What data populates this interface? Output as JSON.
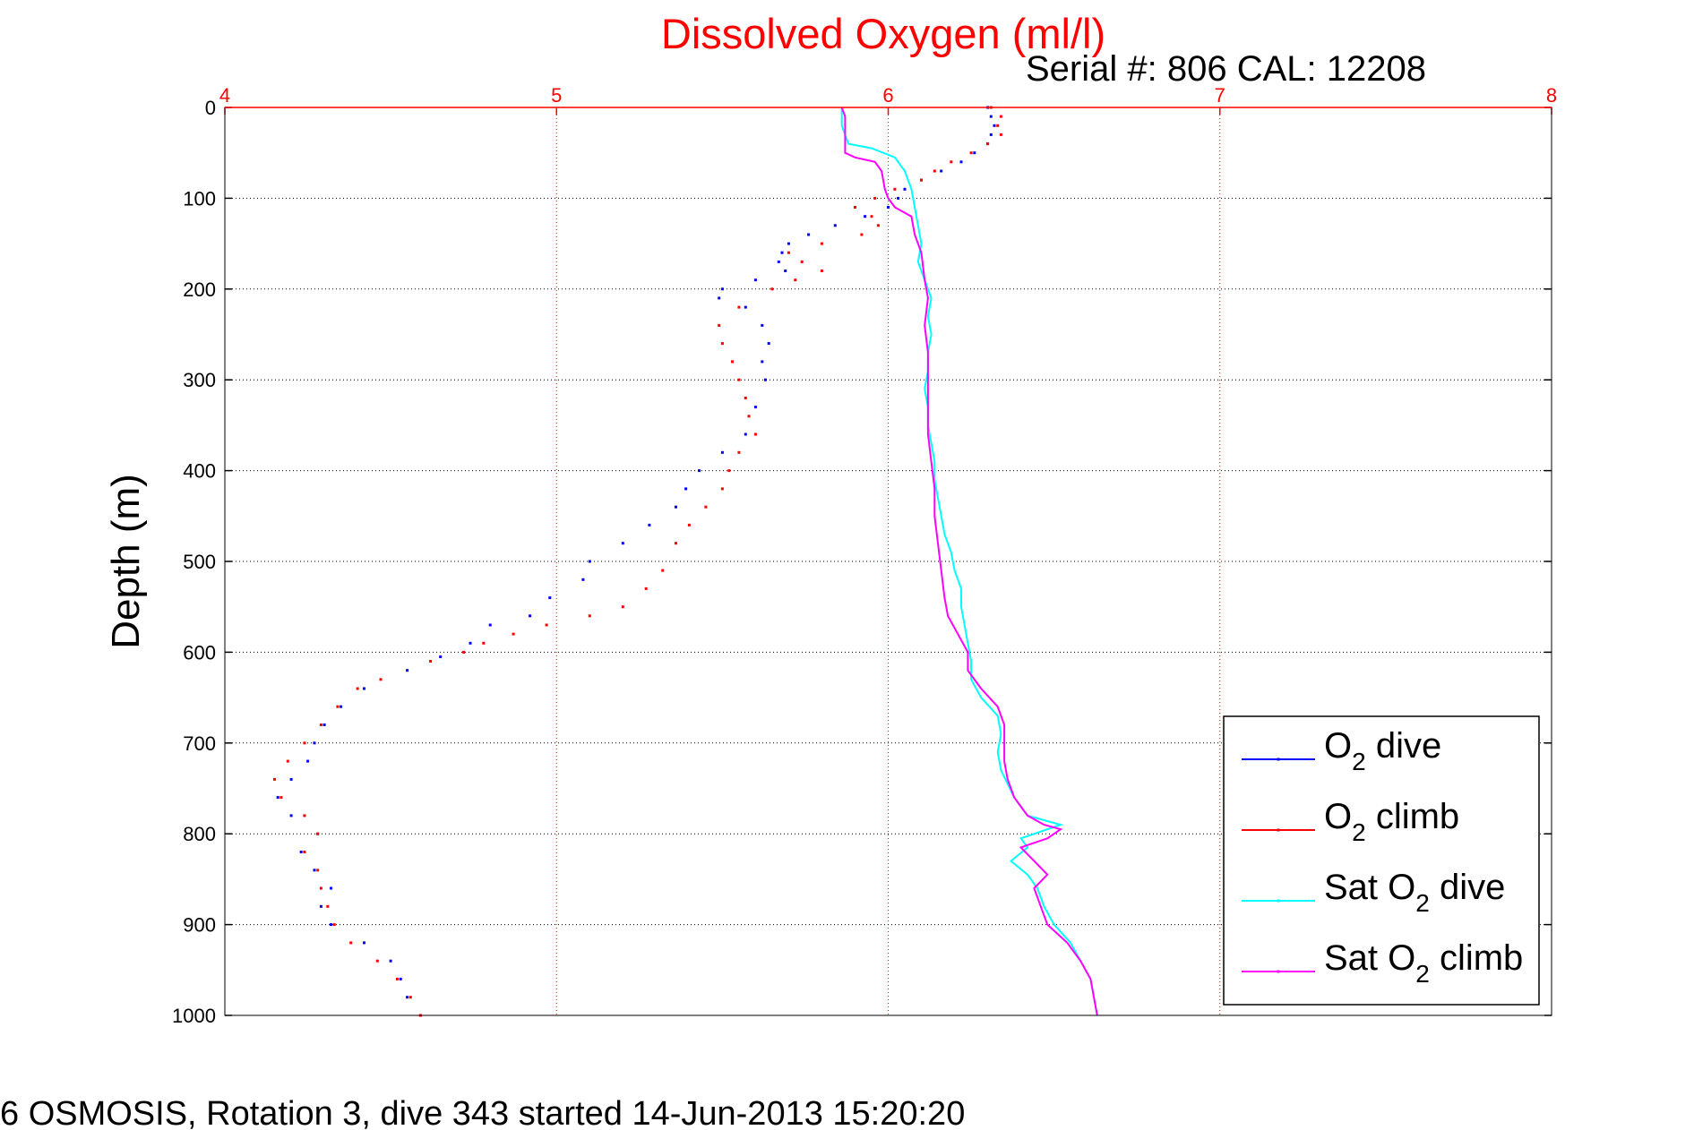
{
  "chart_data": {
    "type": "scatter",
    "title": "Dissolved Oxygen (ml/l)",
    "serial_label": "Serial #: 806  CAL: 12208",
    "ylabel": "Depth (m)",
    "xlabel": "",
    "footer": "6 OSMOSIS, Rotation 3, dive 343 started 14-Jun-2013 15:20:20",
    "xlim": [
      4,
      8
    ],
    "ylim": [
      0,
      1000
    ],
    "y_reversed": true,
    "x_axis_position": "top",
    "grid": true,
    "legend_position": "bottom-right",
    "x_ticks": [
      "4",
      "5",
      "6",
      "7",
      "8"
    ],
    "y_ticks": [
      "0",
      "100",
      "200",
      "300",
      "400",
      "500",
      "600",
      "700",
      "800",
      "900",
      "1000"
    ],
    "colors": {
      "title": "#ff0000",
      "x_axis": "#ff0000",
      "o2_dive": "#0000ff",
      "o2_climb": "#ff0000",
      "sat_dive": "#00ffff",
      "sat_climb": "#ff00ff"
    },
    "legend": [
      {
        "base": "O",
        "sub": "2",
        "rest": " dive",
        "color": "#0000ff"
      },
      {
        "base": "O",
        "sub": "2",
        "rest": " climb",
        "color": "#ff0000"
      },
      {
        "base": "Sat O",
        "sub": "2",
        "rest": " dive",
        "color": "#00ffff"
      },
      {
        "base": "Sat O",
        "sub": "2",
        "rest": " climb",
        "color": "#ff00ff"
      }
    ],
    "series": [
      {
        "name": "O2 dive",
        "style": "points",
        "color": "#0000ff",
        "points": [
          [
            6.3,
            0
          ],
          [
            6.31,
            10
          ],
          [
            6.32,
            20
          ],
          [
            6.31,
            30
          ],
          [
            6.3,
            40
          ],
          [
            6.26,
            50
          ],
          [
            6.22,
            60
          ],
          [
            6.16,
            70
          ],
          [
            6.1,
            80
          ],
          [
            6.05,
            90
          ],
          [
            6.03,
            100
          ],
          [
            6.0,
            110
          ],
          [
            5.93,
            120
          ],
          [
            5.84,
            130
          ],
          [
            5.76,
            140
          ],
          [
            5.7,
            150
          ],
          [
            5.68,
            160
          ],
          [
            5.67,
            170
          ],
          [
            5.69,
            180
          ],
          [
            5.6,
            190
          ],
          [
            5.5,
            200
          ],
          [
            5.49,
            210
          ],
          [
            5.57,
            220
          ],
          [
            5.62,
            240
          ],
          [
            5.64,
            260
          ],
          [
            5.62,
            280
          ],
          [
            5.63,
            300
          ],
          [
            5.6,
            330
          ],
          [
            5.57,
            360
          ],
          [
            5.5,
            380
          ],
          [
            5.43,
            400
          ],
          [
            5.39,
            420
          ],
          [
            5.36,
            440
          ],
          [
            5.28,
            460
          ],
          [
            5.2,
            480
          ],
          [
            5.1,
            500
          ],
          [
            5.08,
            520
          ],
          [
            4.98,
            540
          ],
          [
            4.92,
            560
          ],
          [
            4.8,
            570
          ],
          [
            4.74,
            590
          ],
          [
            4.65,
            605
          ],
          [
            4.55,
            620
          ],
          [
            4.42,
            640
          ],
          [
            4.35,
            660
          ],
          [
            4.3,
            680
          ],
          [
            4.27,
            700
          ],
          [
            4.25,
            720
          ],
          [
            4.2,
            740
          ],
          [
            4.16,
            760
          ],
          [
            4.2,
            780
          ],
          [
            4.28,
            800
          ],
          [
            4.23,
            820
          ],
          [
            4.27,
            840
          ],
          [
            4.32,
            860
          ],
          [
            4.29,
            880
          ],
          [
            4.32,
            900
          ],
          [
            4.42,
            920
          ],
          [
            4.5,
            940
          ],
          [
            4.53,
            960
          ],
          [
            4.55,
            980
          ],
          [
            4.59,
            1000
          ]
        ]
      },
      {
        "name": "O2 climb",
        "style": "points",
        "color": "#ff0000",
        "points": [
          [
            4.59,
            1000
          ],
          [
            4.56,
            980
          ],
          [
            4.52,
            960
          ],
          [
            4.46,
            940
          ],
          [
            4.38,
            920
          ],
          [
            4.33,
            900
          ],
          [
            4.31,
            880
          ],
          [
            4.29,
            860
          ],
          [
            4.28,
            840
          ],
          [
            4.24,
            820
          ],
          [
            4.28,
            800
          ],
          [
            4.24,
            780
          ],
          [
            4.17,
            760
          ],
          [
            4.15,
            740
          ],
          [
            4.19,
            720
          ],
          [
            4.24,
            700
          ],
          [
            4.29,
            680
          ],
          [
            4.34,
            660
          ],
          [
            4.4,
            640
          ],
          [
            4.47,
            630
          ],
          [
            4.62,
            610
          ],
          [
            4.72,
            600
          ],
          [
            4.78,
            590
          ],
          [
            4.87,
            580
          ],
          [
            4.97,
            570
          ],
          [
            5.1,
            560
          ],
          [
            5.2,
            550
          ],
          [
            5.27,
            530
          ],
          [
            5.32,
            510
          ],
          [
            5.36,
            480
          ],
          [
            5.4,
            460
          ],
          [
            5.45,
            440
          ],
          [
            5.5,
            420
          ],
          [
            5.52,
            400
          ],
          [
            5.55,
            380
          ],
          [
            5.6,
            360
          ],
          [
            5.58,
            340
          ],
          [
            5.57,
            320
          ],
          [
            5.55,
            300
          ],
          [
            5.53,
            280
          ],
          [
            5.5,
            260
          ],
          [
            5.49,
            240
          ],
          [
            5.55,
            220
          ],
          [
            5.65,
            200
          ],
          [
            5.72,
            190
          ],
          [
            5.8,
            180
          ],
          [
            5.74,
            170
          ],
          [
            5.7,
            160
          ],
          [
            5.8,
            150
          ],
          [
            5.92,
            140
          ],
          [
            5.97,
            130
          ],
          [
            5.95,
            120
          ],
          [
            5.9,
            110
          ],
          [
            5.96,
            100
          ],
          [
            6.02,
            90
          ],
          [
            6.1,
            80
          ],
          [
            6.14,
            70
          ],
          [
            6.19,
            60
          ],
          [
            6.25,
            50
          ],
          [
            6.3,
            40
          ],
          [
            6.34,
            30
          ],
          [
            6.33,
            20
          ],
          [
            6.34,
            10
          ],
          [
            6.31,
            0
          ]
        ]
      },
      {
        "name": "Sat O2 dive",
        "style": "line",
        "color": "#00ffff",
        "points": [
          [
            5.86,
            0
          ],
          [
            5.86,
            20
          ],
          [
            5.88,
            40
          ],
          [
            5.95,
            45
          ],
          [
            6.02,
            55
          ],
          [
            6.05,
            70
          ],
          [
            6.07,
            90
          ],
          [
            6.08,
            110
          ],
          [
            6.09,
            130
          ],
          [
            6.1,
            150
          ],
          [
            6.09,
            170
          ],
          [
            6.11,
            190
          ],
          [
            6.13,
            210
          ],
          [
            6.12,
            230
          ],
          [
            6.13,
            250
          ],
          [
            6.12,
            270
          ],
          [
            6.12,
            290
          ],
          [
            6.11,
            310
          ],
          [
            6.12,
            330
          ],
          [
            6.12,
            350
          ],
          [
            6.13,
            370
          ],
          [
            6.14,
            390
          ],
          [
            6.14,
            410
          ],
          [
            6.15,
            430
          ],
          [
            6.16,
            450
          ],
          [
            6.17,
            470
          ],
          [
            6.19,
            490
          ],
          [
            6.2,
            510
          ],
          [
            6.22,
            530
          ],
          [
            6.22,
            550
          ],
          [
            6.23,
            570
          ],
          [
            6.24,
            590
          ],
          [
            6.25,
            610
          ],
          [
            6.25,
            630
          ],
          [
            6.28,
            650
          ],
          [
            6.33,
            670
          ],
          [
            6.34,
            690
          ],
          [
            6.33,
            710
          ],
          [
            6.34,
            730
          ],
          [
            6.38,
            760
          ],
          [
            6.42,
            780
          ],
          [
            6.52,
            790
          ],
          [
            6.4,
            805
          ],
          [
            6.42,
            815
          ],
          [
            6.37,
            830
          ],
          [
            6.42,
            845
          ],
          [
            6.45,
            860
          ],
          [
            6.47,
            880
          ],
          [
            6.5,
            900
          ],
          [
            6.55,
            920
          ],
          [
            6.58,
            940
          ],
          [
            6.61,
            960
          ],
          [
            6.62,
            980
          ],
          [
            6.63,
            1000
          ]
        ]
      },
      {
        "name": "Sat O2 climb",
        "style": "line",
        "color": "#ff00ff",
        "points": [
          [
            6.63,
            1000
          ],
          [
            6.62,
            980
          ],
          [
            6.61,
            960
          ],
          [
            6.58,
            940
          ],
          [
            6.54,
            920
          ],
          [
            6.48,
            900
          ],
          [
            6.46,
            880
          ],
          [
            6.44,
            860
          ],
          [
            6.48,
            845
          ],
          [
            6.44,
            830
          ],
          [
            6.4,
            815
          ],
          [
            6.48,
            805
          ],
          [
            6.52,
            795
          ],
          [
            6.47,
            790
          ],
          [
            6.42,
            780
          ],
          [
            6.38,
            760
          ],
          [
            6.36,
            740
          ],
          [
            6.35,
            720
          ],
          [
            6.35,
            700
          ],
          [
            6.35,
            680
          ],
          [
            6.33,
            660
          ],
          [
            6.28,
            640
          ],
          [
            6.24,
            620
          ],
          [
            6.24,
            600
          ],
          [
            6.21,
            580
          ],
          [
            6.18,
            560
          ],
          [
            6.17,
            540
          ],
          [
            6.16,
            510
          ],
          [
            6.15,
            480
          ],
          [
            6.14,
            450
          ],
          [
            6.14,
            420
          ],
          [
            6.13,
            390
          ],
          [
            6.12,
            360
          ],
          [
            6.12,
            330
          ],
          [
            6.12,
            300
          ],
          [
            6.12,
            270
          ],
          [
            6.11,
            240
          ],
          [
            6.12,
            210
          ],
          [
            6.11,
            190
          ],
          [
            6.1,
            160
          ],
          [
            6.08,
            140
          ],
          [
            6.07,
            120
          ],
          [
            6.02,
            110
          ],
          [
            6.0,
            100
          ],
          [
            5.99,
            90
          ],
          [
            5.98,
            70
          ],
          [
            5.96,
            60
          ],
          [
            5.9,
            55
          ],
          [
            5.87,
            50
          ],
          [
            5.87,
            30
          ],
          [
            5.87,
            10
          ],
          [
            5.86,
            0
          ]
        ]
      }
    ]
  }
}
